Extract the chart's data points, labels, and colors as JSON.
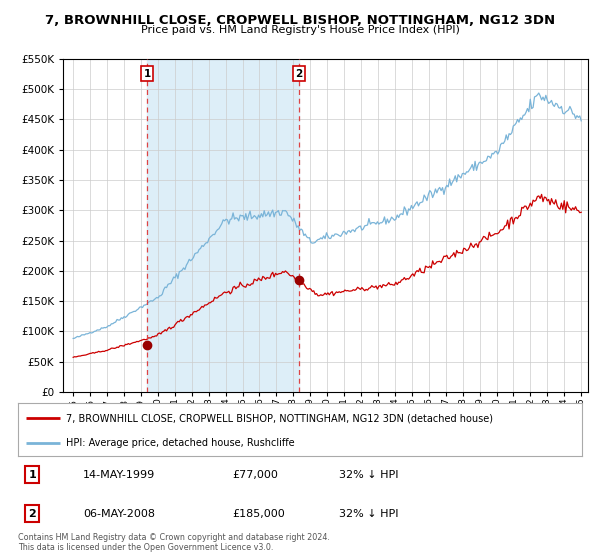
{
  "title": "7, BROWNHILL CLOSE, CROPWELL BISHOP, NOTTINGHAM, NG12 3DN",
  "subtitle": "Price paid vs. HM Land Registry's House Price Index (HPI)",
  "legend_line1": "7, BROWNHILL CLOSE, CROPWELL BISHOP, NOTTINGHAM, NG12 3DN (detached house)",
  "legend_line2": "HPI: Average price, detached house, Rushcliffe",
  "table_row1": [
    "1",
    "14-MAY-1999",
    "£77,000",
    "32% ↓ HPI"
  ],
  "table_row2": [
    "2",
    "06-MAY-2008",
    "£185,000",
    "32% ↓ HPI"
  ],
  "footnote1": "Contains HM Land Registry data © Crown copyright and database right 2024.",
  "footnote2": "This data is licensed under the Open Government Licence v3.0.",
  "hpi_color": "#7ab4d8",
  "price_color": "#cc0000",
  "marker_color": "#990000",
  "dashed_color": "#dd4444",
  "shade_color": "#ddeef8",
  "grid_color": "#cccccc",
  "bg_color": "#ffffff",
  "ylim": [
    0,
    550000
  ],
  "yticks": [
    0,
    50000,
    100000,
    150000,
    200000,
    250000,
    300000,
    350000,
    400000,
    450000,
    500000,
    550000
  ],
  "sale1_year": 1999.37,
  "sale1_price": 77000,
  "sale2_year": 2008.34,
  "sale2_price": 185000,
  "xstart": 1995,
  "xend": 2025
}
